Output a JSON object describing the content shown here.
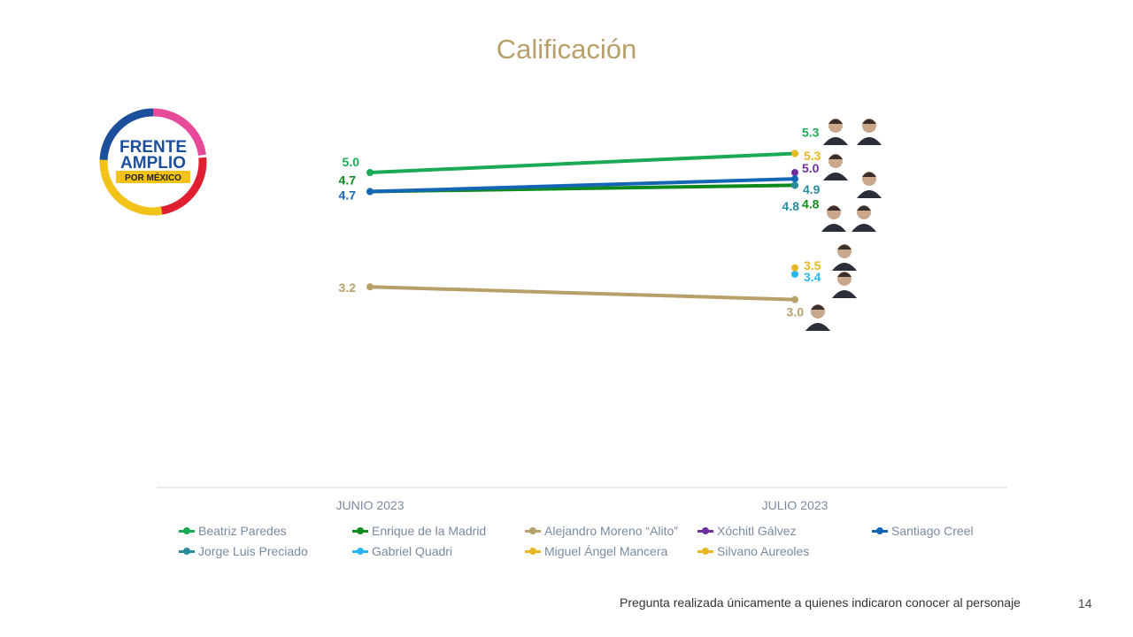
{
  "title": "Calificación",
  "logo": {
    "line1": "FRENTE",
    "line2": "AMPLIO",
    "line3": "POR MÉXICO"
  },
  "footnote": "Pregunta realizada únicamente a quienes indicaron conocer al personaje",
  "page_number": "14",
  "chart_data": {
    "type": "line",
    "title": "Calificación",
    "categories": [
      "JUNIO 2023",
      "JULIO 2023"
    ],
    "ylim": [
      0,
      10
    ],
    "grid": false,
    "legend_position": "bottom",
    "series": [
      {
        "name": "Beatriz Paredes",
        "color": "#1aaa55",
        "values": [
          5.0,
          5.3
        ],
        "labels": [
          "5.0",
          "5.3"
        ]
      },
      {
        "name": "Enrique de la Madrid",
        "color": "#0f8a1e",
        "values": [
          4.7,
          4.8
        ],
        "labels": [
          "4.7",
          "4.8"
        ]
      },
      {
        "name": "Alejandro Moreno “Alito”",
        "color": "#b8a06a",
        "values": [
          3.2,
          3.0
        ],
        "labels": [
          "3.2",
          "3.0"
        ]
      },
      {
        "name": "Xóchitl Gálvez",
        "color": "#7030a0",
        "values": [
          null,
          5.0
        ],
        "labels": [
          "",
          "5.0"
        ]
      },
      {
        "name": "Santiago Creel",
        "color": "#1565b5",
        "values": [
          4.7,
          4.9
        ],
        "labels": [
          "4.7",
          ""
        ]
      },
      {
        "name": "Jorge Luis Preciado",
        "color": "#2a8b9c",
        "values": [
          null,
          4.8
        ],
        "labels": [
          "",
          "4.8"
        ]
      },
      {
        "name": "Gabriel Quadri",
        "color": "#29b6f6",
        "values": [
          null,
          3.4
        ],
        "labels": [
          "",
          "3.4"
        ]
      },
      {
        "name": "Miguel Ángel Mancera",
        "color": "#e8b824",
        "values": [
          null,
          3.5
        ],
        "labels": [
          "",
          "3.5"
        ]
      },
      {
        "name": "Silvano Aureoles",
        "color": "#e8b824",
        "values": [
          null,
          5.3
        ],
        "labels": [
          "",
          "5.3"
        ]
      }
    ],
    "extra_labels": [
      {
        "series": "Santiago Creel",
        "text": "4.9",
        "color": "#2a8b9c"
      }
    ]
  }
}
